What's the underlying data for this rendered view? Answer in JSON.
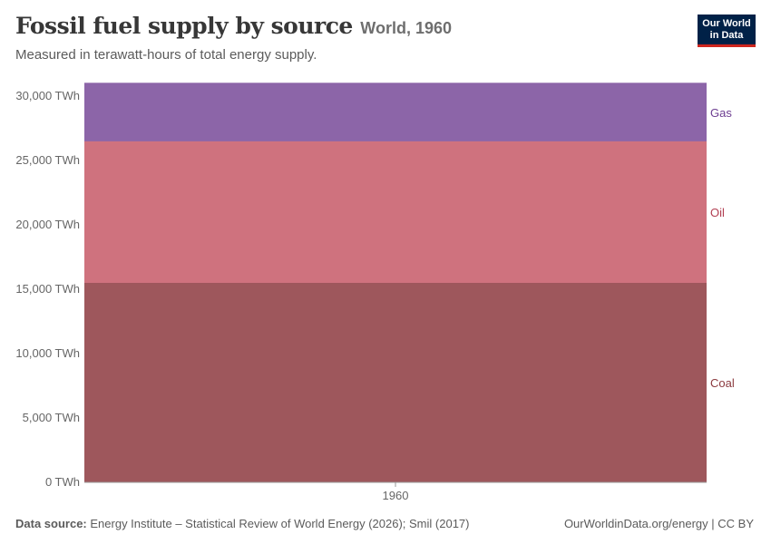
{
  "header": {
    "title": "Fossil fuel supply by source",
    "entity": "World, 1960",
    "subtitle": "Measured in terawatt-hours of total energy supply."
  },
  "logo": {
    "line1": "Our World",
    "line2": "in Data"
  },
  "footer": {
    "source_label": "Data source:",
    "source_text": "Energy Institute – Statistical Review of World Energy (2026); Smil (2017)",
    "right_text": "OurWorldinData.org/energy | CC BY"
  },
  "chart_data": {
    "type": "area",
    "stacked": true,
    "x": [
      "1960"
    ],
    "ylim": [
      0,
      31000
    ],
    "yticks": [
      0,
      5000,
      10000,
      15000,
      20000,
      25000,
      30000
    ],
    "ytick_labels": [
      "0 TWh",
      "5,000 TWh",
      "10,000 TWh",
      "15,000 TWh",
      "20,000 TWh",
      "25,000 TWh",
      "30,000 TWh"
    ],
    "grid": "horizontal dashed",
    "legend": "right, inline labels",
    "series": [
      {
        "name": "Coal",
        "values": [
          15500
        ],
        "color": "#9e575c"
      },
      {
        "name": "Oil",
        "values": [
          11000
        ],
        "color": "#cf727e"
      },
      {
        "name": "Gas",
        "values": [
          4500
        ],
        "color": "#8c65a8"
      }
    ],
    "label_colors": {
      "Coal": "#8b3a3f",
      "Oil": "#b13e51",
      "Gas": "#6d3e91"
    }
  }
}
